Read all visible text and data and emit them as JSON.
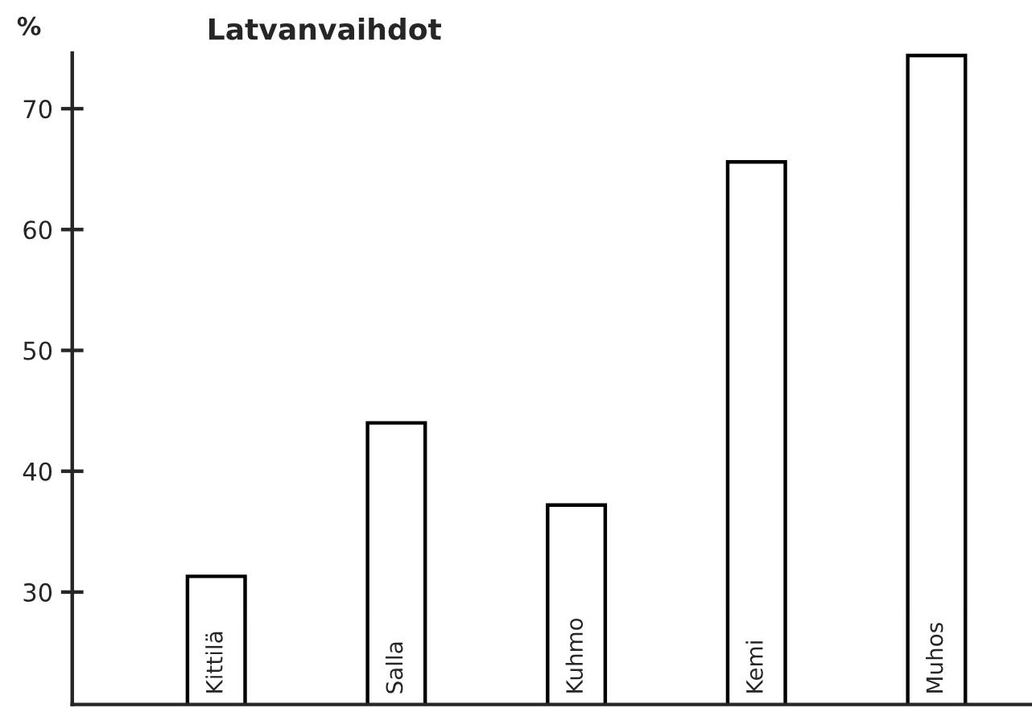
{
  "chart_data": {
    "type": "bar",
    "title": "Latvanvaihdot",
    "ylabel": "%",
    "categories": [
      "Kittilä",
      "Salla",
      "Kuhmo",
      "Kemi",
      "Muhos"
    ],
    "values": [
      31.3,
      44.0,
      37.2,
      65.6,
      74.4
    ],
    "color": "#ffffff",
    "ylim": [
      20.7,
      74.6
    ],
    "yticks": [
      30,
      40,
      50,
      60,
      70
    ],
    "grid": false,
    "legend": false
  }
}
